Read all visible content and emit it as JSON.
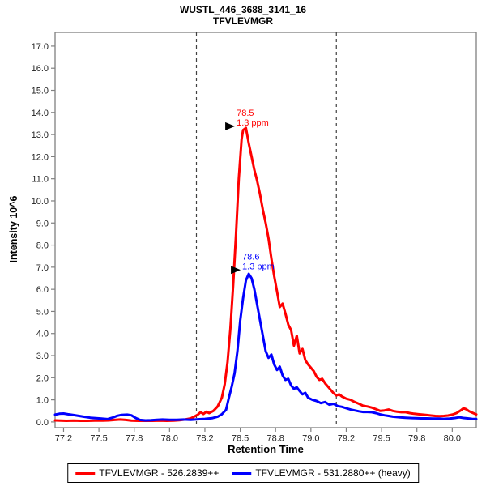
{
  "header": {
    "title": "WUSTL_446_3688_3141_16",
    "subtitle": "TFVLEVMGR"
  },
  "colors": {
    "axis": "#808080",
    "tick_label": "#222222",
    "annotation_arrow": "#000000",
    "background": "#ffffff",
    "light_series": "#ff0000",
    "heavy_series": "#0000ff",
    "boundary": "#404040"
  },
  "legend": {
    "items": [
      {
        "id": "light",
        "label": "TFVLEVMGR - 526.2839++",
        "color": "#ff0000"
      },
      {
        "id": "heavy",
        "label": "TFVLEVMGR - 531.2880++ (heavy)",
        "color": "#0000ff"
      }
    ]
  },
  "chart_data": {
    "type": "line",
    "title": "WUSTL_446_3688_3141_16",
    "subtitle": "TFVLEVMGR",
    "xlabel": "Retention Time",
    "ylabel": "Intensity 10^6",
    "xlim": [
      77.19,
      80.17
    ],
    "ylim": [
      -0.26,
      17.62
    ],
    "grid": false,
    "legend_position": "bottom",
    "x_ticks": {
      "values": [
        77.25,
        77.5,
        77.75,
        78.0,
        78.25,
        78.5,
        78.75,
        79.0,
        79.25,
        79.5,
        79.75,
        80.0
      ],
      "labels": [
        "77.2",
        "77.5",
        "77.8",
        "78.0",
        "78.2",
        "78.5",
        "78.8",
        "79.0",
        "79.2",
        "79.5",
        "79.8",
        "80.0"
      ]
    },
    "y_ticks": {
      "values": [
        0,
        1,
        2,
        3,
        4,
        5,
        6,
        7,
        8,
        9,
        10,
        11,
        12,
        13,
        14,
        15,
        16,
        17
      ],
      "labels": [
        "0.0",
        "1.0",
        "2.0",
        "3.0",
        "4.0",
        "5.0",
        "6.0",
        "7.0",
        "8.0",
        "9.0",
        "10.0",
        "11.0",
        "12.0",
        "13.0",
        "14.0",
        "15.0",
        "16.0",
        "17.0"
      ]
    },
    "boundaries": {
      "values": [
        78.19,
        79.18
      ],
      "style": "dashed",
      "color": "#404040"
    },
    "annotations": [
      {
        "series": "light",
        "rt_label": "78.5",
        "ppm_label": "1.3 ppm",
        "x": 78.52,
        "y": 13.3,
        "color": "#ff0000"
      },
      {
        "series": "heavy",
        "rt_label": "78.6",
        "ppm_label": "1.3 ppm",
        "x": 78.56,
        "y": 6.8,
        "color": "#0000ff"
      }
    ],
    "series": [
      {
        "id": "light",
        "name": "TFVLEVMGR - 526.2839++",
        "color": "#ff0000",
        "points": [
          [
            77.19,
            0.07
          ],
          [
            77.23,
            0.06
          ],
          [
            77.27,
            0.05
          ],
          [
            77.32,
            0.06
          ],
          [
            77.37,
            0.05
          ],
          [
            77.42,
            0.05
          ],
          [
            77.47,
            0.06
          ],
          [
            77.52,
            0.06
          ],
          [
            77.57,
            0.07
          ],
          [
            77.61,
            0.09
          ],
          [
            77.65,
            0.11
          ],
          [
            77.69,
            0.09
          ],
          [
            77.73,
            0.06
          ],
          [
            77.78,
            0.05
          ],
          [
            77.83,
            0.05
          ],
          [
            77.88,
            0.05
          ],
          [
            77.93,
            0.06
          ],
          [
            77.98,
            0.05
          ],
          [
            78.03,
            0.06
          ],
          [
            78.07,
            0.08
          ],
          [
            78.11,
            0.11
          ],
          [
            78.15,
            0.16
          ],
          [
            78.18,
            0.26
          ],
          [
            78.2,
            0.33
          ],
          [
            78.22,
            0.44
          ],
          [
            78.24,
            0.36
          ],
          [
            78.26,
            0.46
          ],
          [
            78.28,
            0.4
          ],
          [
            78.31,
            0.5
          ],
          [
            78.34,
            0.7
          ],
          [
            78.37,
            1.1
          ],
          [
            78.39,
            1.7
          ],
          [
            78.41,
            2.7
          ],
          [
            78.43,
            4.2
          ],
          [
            78.45,
            6.2
          ],
          [
            78.47,
            8.5
          ],
          [
            78.49,
            11.0
          ],
          [
            78.51,
            12.8
          ],
          [
            78.52,
            13.2
          ],
          [
            78.54,
            13.3
          ],
          [
            78.56,
            12.6
          ],
          [
            78.58,
            12.0
          ],
          [
            78.6,
            11.4
          ],
          [
            78.62,
            10.9
          ],
          [
            78.64,
            10.3
          ],
          [
            78.66,
            9.6
          ],
          [
            78.68,
            9.0
          ],
          [
            78.7,
            8.3
          ],
          [
            78.72,
            7.4
          ],
          [
            78.74,
            6.6
          ],
          [
            78.76,
            5.9
          ],
          [
            78.78,
            5.2
          ],
          [
            78.8,
            5.35
          ],
          [
            78.82,
            4.9
          ],
          [
            78.84,
            4.4
          ],
          [
            78.86,
            4.15
          ],
          [
            78.88,
            3.45
          ],
          [
            78.9,
            3.9
          ],
          [
            78.92,
            3.1
          ],
          [
            78.94,
            3.3
          ],
          [
            78.96,
            2.8
          ],
          [
            78.98,
            2.6
          ],
          [
            79.0,
            2.45
          ],
          [
            79.02,
            2.3
          ],
          [
            79.04,
            2.05
          ],
          [
            79.06,
            1.9
          ],
          [
            79.08,
            1.95
          ],
          [
            79.1,
            1.75
          ],
          [
            79.12,
            1.6
          ],
          [
            79.14,
            1.45
          ],
          [
            79.16,
            1.3
          ],
          [
            79.18,
            1.2
          ],
          [
            79.2,
            1.25
          ],
          [
            79.22,
            1.15
          ],
          [
            79.25,
            1.05
          ],
          [
            79.28,
            1.0
          ],
          [
            79.31,
            0.9
          ],
          [
            79.34,
            0.82
          ],
          [
            79.37,
            0.73
          ],
          [
            79.4,
            0.7
          ],
          [
            79.43,
            0.65
          ],
          [
            79.46,
            0.58
          ],
          [
            79.49,
            0.5
          ],
          [
            79.52,
            0.52
          ],
          [
            79.55,
            0.56
          ],
          [
            79.58,
            0.5
          ],
          [
            79.61,
            0.46
          ],
          [
            79.64,
            0.44
          ],
          [
            79.67,
            0.44
          ],
          [
            79.7,
            0.4
          ],
          [
            79.73,
            0.37
          ],
          [
            79.76,
            0.35
          ],
          [
            79.79,
            0.33
          ],
          [
            79.82,
            0.31
          ],
          [
            79.85,
            0.29
          ],
          [
            79.88,
            0.27
          ],
          [
            79.91,
            0.26
          ],
          [
            79.94,
            0.27
          ],
          [
            79.97,
            0.29
          ],
          [
            80.0,
            0.33
          ],
          [
            80.03,
            0.4
          ],
          [
            80.06,
            0.52
          ],
          [
            80.08,
            0.62
          ],
          [
            80.1,
            0.57
          ],
          [
            80.12,
            0.48
          ],
          [
            80.14,
            0.42
          ],
          [
            80.17,
            0.34
          ]
        ]
      },
      {
        "id": "heavy",
        "name": "TFVLEVMGR - 531.2880++ (heavy)",
        "color": "#0000ff",
        "points": [
          [
            77.19,
            0.33
          ],
          [
            77.22,
            0.37
          ],
          [
            77.25,
            0.38
          ],
          [
            77.28,
            0.35
          ],
          [
            77.32,
            0.31
          ],
          [
            77.36,
            0.27
          ],
          [
            77.4,
            0.23
          ],
          [
            77.44,
            0.19
          ],
          [
            77.48,
            0.17
          ],
          [
            77.52,
            0.15
          ],
          [
            77.56,
            0.13
          ],
          [
            77.6,
            0.2
          ],
          [
            77.63,
            0.28
          ],
          [
            77.66,
            0.32
          ],
          [
            77.7,
            0.33
          ],
          [
            77.73,
            0.3
          ],
          [
            77.76,
            0.18
          ],
          [
            77.79,
            0.09
          ],
          [
            77.83,
            0.07
          ],
          [
            77.87,
            0.08
          ],
          [
            77.91,
            0.1
          ],
          [
            77.95,
            0.11
          ],
          [
            78.0,
            0.1
          ],
          [
            78.05,
            0.1
          ],
          [
            78.1,
            0.11
          ],
          [
            78.15,
            0.1
          ],
          [
            78.2,
            0.12
          ],
          [
            78.25,
            0.14
          ],
          [
            78.3,
            0.17
          ],
          [
            78.34,
            0.24
          ],
          [
            78.37,
            0.35
          ],
          [
            78.4,
            0.55
          ],
          [
            78.42,
            1.1
          ],
          [
            78.44,
            1.6
          ],
          [
            78.46,
            2.2
          ],
          [
            78.48,
            3.2
          ],
          [
            78.5,
            4.6
          ],
          [
            78.52,
            5.6
          ],
          [
            78.54,
            6.4
          ],
          [
            78.56,
            6.7
          ],
          [
            78.58,
            6.5
          ],
          [
            78.6,
            6.0
          ],
          [
            78.62,
            5.3
          ],
          [
            78.64,
            4.6
          ],
          [
            78.66,
            3.9
          ],
          [
            78.68,
            3.2
          ],
          [
            78.7,
            2.9
          ],
          [
            78.72,
            3.05
          ],
          [
            78.74,
            2.6
          ],
          [
            78.76,
            2.35
          ],
          [
            78.78,
            2.5
          ],
          [
            78.8,
            2.1
          ],
          [
            78.82,
            1.9
          ],
          [
            78.84,
            1.95
          ],
          [
            78.86,
            1.65
          ],
          [
            78.88,
            1.5
          ],
          [
            78.9,
            1.57
          ],
          [
            78.92,
            1.4
          ],
          [
            78.94,
            1.25
          ],
          [
            78.96,
            1.32
          ],
          [
            78.98,
            1.1
          ],
          [
            79.01,
            1.0
          ],
          [
            79.04,
            0.95
          ],
          [
            79.07,
            0.85
          ],
          [
            79.1,
            0.9
          ],
          [
            79.13,
            0.78
          ],
          [
            79.16,
            0.82
          ],
          [
            79.19,
            0.72
          ],
          [
            79.22,
            0.68
          ],
          [
            79.25,
            0.62
          ],
          [
            79.28,
            0.56
          ],
          [
            79.31,
            0.52
          ],
          [
            79.34,
            0.48
          ],
          [
            79.37,
            0.45
          ],
          [
            79.4,
            0.45
          ],
          [
            79.43,
            0.44
          ],
          [
            79.46,
            0.4
          ],
          [
            79.49,
            0.34
          ],
          [
            79.52,
            0.3
          ],
          [
            79.55,
            0.27
          ],
          [
            79.58,
            0.24
          ],
          [
            79.61,
            0.22
          ],
          [
            79.64,
            0.2
          ],
          [
            79.67,
            0.19
          ],
          [
            79.7,
            0.18
          ],
          [
            79.74,
            0.17
          ],
          [
            79.78,
            0.16
          ],
          [
            79.82,
            0.16
          ],
          [
            79.86,
            0.15
          ],
          [
            79.9,
            0.15
          ],
          [
            79.94,
            0.14
          ],
          [
            79.98,
            0.15
          ],
          [
            80.02,
            0.18
          ],
          [
            80.05,
            0.21
          ],
          [
            80.08,
            0.18
          ],
          [
            80.11,
            0.16
          ],
          [
            80.14,
            0.14
          ],
          [
            80.17,
            0.13
          ]
        ]
      }
    ]
  }
}
